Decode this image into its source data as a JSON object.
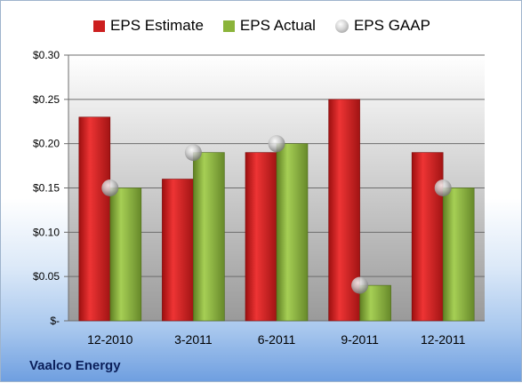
{
  "company": "Vaalco Energy",
  "chart_data": {
    "type": "bar",
    "categories": [
      "12-2010",
      "3-2011",
      "6-2011",
      "9-2011",
      "12-2011"
    ],
    "series": [
      {
        "name": "EPS Estimate",
        "kind": "bar",
        "color": "#cc1f1f",
        "values": [
          0.23,
          0.16,
          0.19,
          0.25,
          0.19
        ]
      },
      {
        "name": "EPS Actual",
        "kind": "bar",
        "color": "#8bb43a",
        "values": [
          0.15,
          0.19,
          0.2,
          0.04,
          0.15
        ]
      },
      {
        "name": "EPS GAAP",
        "kind": "marker",
        "color": "#b8b8b8",
        "values": [
          0.15,
          0.19,
          0.2,
          0.04,
          0.15
        ]
      }
    ],
    "ylim": [
      0,
      0.3
    ],
    "yticks": [
      0,
      0.05,
      0.1,
      0.15,
      0.2,
      0.25,
      0.3
    ],
    "ytick_labels": [
      "$-",
      "$0.05",
      "$0.10",
      "$0.15",
      "$0.20",
      "$0.25",
      "$0.30"
    ],
    "grid": true,
    "legend_position": "top"
  }
}
